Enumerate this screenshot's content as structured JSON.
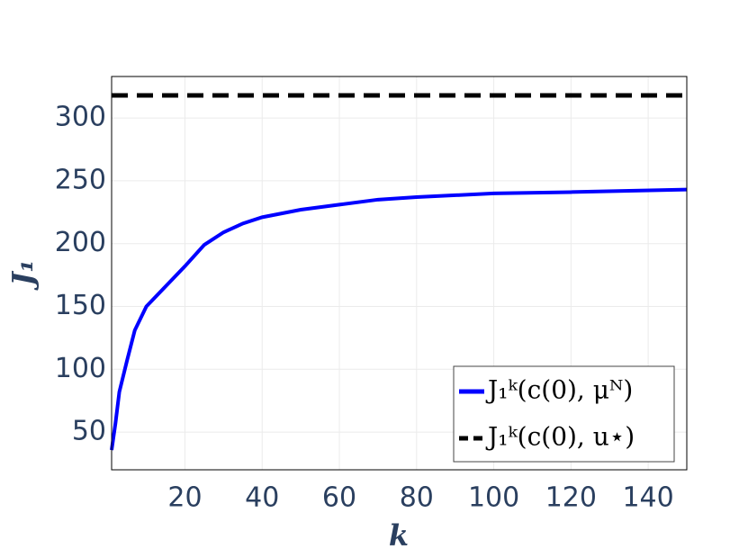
{
  "chart_data": {
    "type": "line",
    "x_label": "k",
    "y_label": "J₁",
    "xlim": [
      1,
      150
    ],
    "xticks": [
      20,
      40,
      60,
      80,
      100,
      120,
      140
    ],
    "ylim": [
      20,
      333
    ],
    "yticks": [
      50,
      100,
      150,
      200,
      250,
      300
    ],
    "grid": true,
    "legend_position": "lower right",
    "series": [
      {
        "name": "J₁ᵏ(c(0), μᴺ)",
        "color": "#0000ff",
        "dash": "solid",
        "x": [
          1,
          2,
          3,
          5,
          7,
          10,
          15,
          20,
          25,
          30,
          35,
          40,
          50,
          60,
          70,
          80,
          100,
          120,
          150
        ],
        "values": [
          35.7,
          57,
          82,
          107,
          131,
          150,
          166,
          182,
          199,
          209,
          216,
          221,
          227,
          231,
          235,
          237,
          240,
          241,
          243
        ]
      },
      {
        "name": "J₁ᵏ(c(0), u⋆)",
        "color": "#000000",
        "dash": "dashed",
        "x": [
          1,
          150
        ],
        "values": [
          318,
          318
        ]
      }
    ]
  }
}
